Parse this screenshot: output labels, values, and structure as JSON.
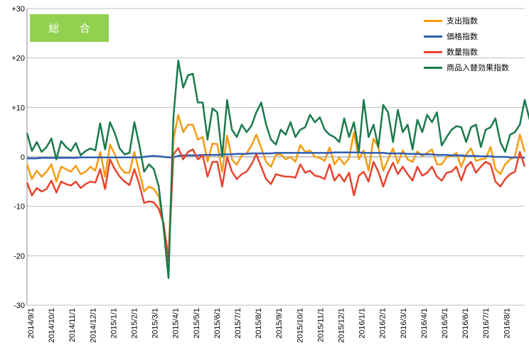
{
  "badge": {
    "label": "総 合"
  },
  "chart_data": {
    "type": "line",
    "title": "総 合",
    "xlabel": "",
    "ylabel": "",
    "ylim": [
      -30,
      30
    ],
    "y_ticks": [
      {
        "value": 30,
        "label": "+30"
      },
      {
        "value": 20,
        "label": "+20"
      },
      {
        "value": 10,
        "label": "+10"
      },
      {
        "value": 0,
        "label": "0"
      },
      {
        "value": -10,
        "label": "-10"
      },
      {
        "value": -20,
        "label": "-20"
      },
      {
        "value": -30,
        "label": "-30"
      }
    ],
    "x_tick_labels": [
      "2014/9/1",
      "2014/10/1",
      "2014/11/1",
      "2014/12/1",
      "2015/1/1",
      "2015/2/1",
      "2015/3/1",
      "2015/4/1",
      "2015/5/1",
      "2015/6/1",
      "2015/7/1",
      "2015/8/1",
      "2015/9/1",
      "2015/10/1",
      "2015/11/1",
      "2015/12/1",
      "2016/1/1",
      "2016/2/1",
      "2016/3/1",
      "2016/4/1",
      "2016/5/1",
      "2016/6/1",
      "2016/7/1",
      "2016/8/1"
    ],
    "grid": "horizontal",
    "legend_position": "top-right",
    "series": [
      {
        "name": "支出指数",
        "color": "#F39C12",
        "values": [
          -1.5,
          -4.5,
          -2.8,
          -4.0,
          -3.0,
          -1.5,
          -5.0,
          -2.0,
          -2.5,
          -3.0,
          -1.8,
          -3.5,
          -3.0,
          -2.0,
          -2.8,
          1.0,
          -4.0,
          2.5,
          0.5,
          -2.0,
          -3.2,
          -3.2,
          1.0,
          -3.0,
          -7.0,
          -6.0,
          -6.5,
          -8.0,
          -14.0,
          -20.0,
          3.5,
          8.5,
          5.0,
          6.5,
          6.5,
          3.5,
          4.0,
          -1.0,
          2.7,
          2.6,
          -3.0,
          4.3,
          -0.5,
          -1.6,
          0.3,
          0.7,
          2.3,
          4.5,
          1.8,
          -1.0,
          -2.0,
          0.4,
          0.5,
          -0.5,
          0.0,
          -1.0,
          2.4,
          1.0,
          1.3,
          0.0,
          -0.2,
          -0.8,
          1.9,
          -1.5,
          -0.2,
          -1.5,
          -0.3,
          5.0,
          -0.5,
          1.3,
          -2.8,
          3.7,
          2.0,
          -2.8,
          -0.5,
          1.7,
          -1.3,
          1.3,
          -0.5,
          -1.0,
          1.1,
          0.2,
          0.8,
          1.5,
          -1.5,
          -1.5,
          0.0,
          0.2,
          0.8,
          -2.0,
          0.5,
          1.7,
          -0.8,
          -0.5,
          -0.3,
          2.0,
          -2.5,
          -3.5,
          -1.5,
          -0.5,
          0.0,
          4.5,
          1.0
        ]
      },
      {
        "name": "価格指数",
        "color": "#2E5DB3",
        "values": [
          -0.3,
          -0.3,
          -0.3,
          -0.2,
          -0.2,
          -0.2,
          -0.2,
          -0.2,
          -0.2,
          -0.2,
          -0.2,
          -0.1,
          -0.1,
          -0.1,
          -0.1,
          -0.1,
          -0.1,
          -0.1,
          -0.1,
          -0.1,
          -0.1,
          -0.1,
          -0.1,
          -0.1,
          0.0,
          0.1,
          0.2,
          0.1,
          0.0,
          -0.1,
          -0.1,
          0.2,
          0.3,
          0.3,
          0.3,
          0.3,
          0.4,
          0.4,
          0.4,
          0.4,
          0.5,
          0.5,
          0.5,
          0.6,
          0.6,
          0.6,
          0.7,
          0.7,
          0.7,
          0.7,
          0.7,
          0.8,
          0.8,
          0.8,
          0.8,
          0.8,
          0.8,
          0.8,
          0.8,
          0.8,
          0.8,
          0.8,
          0.8,
          0.9,
          0.9,
          0.9,
          0.9,
          0.9,
          0.9,
          0.8,
          0.8,
          0.8,
          0.8,
          0.8,
          0.7,
          0.7,
          0.7,
          0.7,
          0.6,
          0.6,
          0.6,
          0.5,
          0.5,
          0.5,
          0.4,
          0.4,
          0.4,
          0.3,
          0.3,
          0.3,
          0.2,
          0.2,
          0.2,
          0.1,
          0.1,
          0.1,
          0.0,
          0.0,
          0.0,
          -0.1,
          -0.1,
          -0.1,
          -0.2
        ]
      },
      {
        "name": "数量指数",
        "color": "#E8432E",
        "values": [
          -5.2,
          -7.8,
          -6.3,
          -7.0,
          -6.5,
          -4.8,
          -7.2,
          -5.0,
          -5.5,
          -5.8,
          -5.0,
          -6.3,
          -5.5,
          -5.0,
          -5.2,
          -2.5,
          -6.5,
          -0.5,
          -2.5,
          -4.0,
          -5.0,
          -5.7,
          -2.5,
          -5.5,
          -9.3,
          -9.0,
          -9.2,
          -10.5,
          -13.5,
          -21.0,
          0.5,
          1.8,
          -0.5,
          1.0,
          1.5,
          -0.5,
          0.3,
          -4.0,
          -1.0,
          -1.0,
          -6.0,
          0.0,
          -3.0,
          -4.5,
          -3.5,
          -3.0,
          -1.5,
          0.5,
          -2.0,
          -4.5,
          -5.5,
          -3.5,
          -3.8,
          -4.0,
          -4.0,
          -4.2,
          -1.5,
          -3.2,
          -2.8,
          -3.8,
          -4.0,
          -4.5,
          -1.5,
          -4.8,
          -3.5,
          -5.0,
          -3.2,
          -7.8,
          -3.8,
          -3.0,
          -5.0,
          -1.0,
          -3.0,
          -6.0,
          -3.2,
          -1.2,
          -3.5,
          -2.0,
          -3.5,
          -4.8,
          -2.0,
          -3.8,
          -3.2,
          -2.0,
          -4.0,
          -4.8,
          -3.2,
          -3.0,
          -2.0,
          -4.8,
          -2.0,
          -1.0,
          -3.2,
          -2.0,
          -1.0,
          -1.5,
          -5.0,
          -6.0,
          -4.5,
          -3.5,
          -3.0,
          1.0,
          -2.0
        ]
      },
      {
        "name": "商品入替効果指数",
        "color": "#1A7A4C",
        "values": [
          4.8,
          1.2,
          3.0,
          1.0,
          2.0,
          3.7,
          -0.5,
          3.2,
          2.0,
          1.2,
          2.8,
          0.3,
          1.2,
          1.7,
          1.3,
          6.8,
          1.5,
          7.0,
          4.8,
          1.7,
          0.5,
          0.8,
          7.0,
          2.5,
          -3.0,
          -1.5,
          -2.5,
          -6.0,
          -14.5,
          -24.5,
          8.0,
          19.5,
          14.0,
          16.5,
          16.8,
          11.0,
          11.0,
          3.5,
          9.8,
          9.0,
          0.0,
          11.5,
          5.5,
          4.0,
          6.5,
          5.0,
          6.3,
          9.0,
          11.0,
          6.5,
          3.5,
          2.5,
          5.5,
          4.5,
          7.0,
          4.0,
          5.5,
          6.0,
          8.5,
          7.0,
          8.0,
          5.5,
          4.5,
          4.0,
          3.0,
          7.8,
          4.0,
          7.0,
          1.0,
          11.5,
          4.0,
          6.5,
          2.0,
          10.5,
          9.0,
          3.0,
          9.5,
          5.0,
          6.5,
          1.5,
          7.5,
          5.0,
          8.5,
          7.0,
          9.0,
          2.3,
          4.0,
          5.5,
          6.2,
          6.0,
          3.0,
          6.0,
          6.5,
          2.0,
          5.5,
          6.0,
          7.8,
          3.0,
          1.0,
          4.5,
          5.0,
          6.5,
          11.5,
          7.5
        ]
      }
    ]
  }
}
